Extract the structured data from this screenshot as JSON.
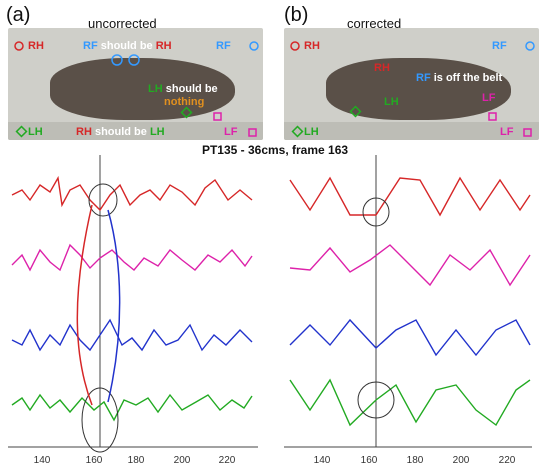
{
  "panels": [
    {
      "label": "(a)",
      "state": "uncorrected",
      "photo_labels": {
        "rh": "RH",
        "rf": "RF",
        "lh": "LH",
        "lf": "LF",
        "rf_note_prefix": "RF",
        "rf_note_mid": " should be ",
        "rf_note_target": "RH",
        "lh_note_prefix": "LH",
        "lh_note_mid": " should be",
        "lh_note_target": "nothing",
        "rh_note_prefix": "RH",
        "rh_note_mid": " should be ",
        "rh_note_target": "LH"
      },
      "x_ticks": [
        "140",
        "160",
        "180",
        "200",
        "220"
      ]
    },
    {
      "label": "(b)",
      "state": "corrected",
      "photo_labels": {
        "rh": "RH",
        "rf": "RF",
        "lh": "LH",
        "lf": "LF",
        "rh2": "RH",
        "rf_note_prefix": "RF",
        "rf_note_rest": " is off the belt",
        "lh2": "LH",
        "lf2": "LF"
      },
      "x_ticks": [
        "140",
        "160",
        "180",
        "200",
        "220"
      ]
    }
  ],
  "figure_title": "PT135 - 36cms, frame 163",
  "colors": {
    "rh": "#d62728",
    "rf": "#3399ff",
    "lh": "#22aa22",
    "lf": "#dd22aa",
    "blue_trace": "#2233cc",
    "orange": "#e09020",
    "black": "#111111"
  },
  "icons": [
    "rh-pentagon-icon",
    "rf-target-icon",
    "lh-diamond-icon",
    "lf-square-icon"
  ]
}
